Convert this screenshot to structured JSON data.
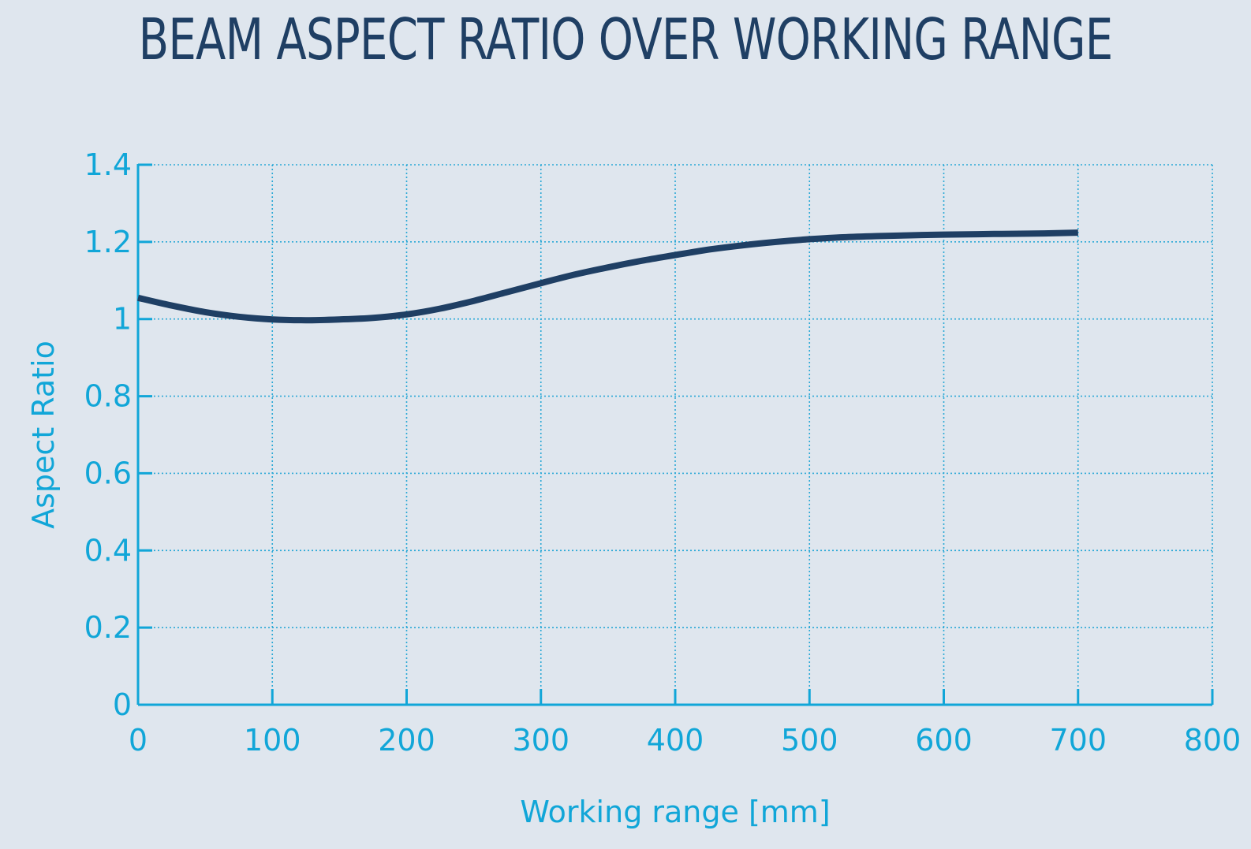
{
  "colors": {
    "background": "#dfe6ee",
    "title": "#1f3f64",
    "axis": "#11a6d8",
    "grid": "#2aa8d6",
    "series": "#1f3f64"
  },
  "chart_data": {
    "type": "line",
    "title": "BEAM ASPECT RATIO OVER WORKING RANGE",
    "xlabel": "Working range [mm]",
    "ylabel": "Aspect Ratio",
    "xlim": [
      0,
      800
    ],
    "ylim": [
      0,
      1.4
    ],
    "x_ticks": [
      0,
      100,
      200,
      300,
      400,
      500,
      600,
      700,
      800
    ],
    "y_ticks": [
      0,
      0.2,
      0.4,
      0.6,
      0.8,
      1,
      1.2,
      1.4
    ],
    "x_tick_labels": [
      "0",
      "100",
      "200",
      "300",
      "400",
      "500",
      "600",
      "700",
      "800"
    ],
    "y_tick_labels": [
      "0",
      "0.2",
      "0.4",
      "0.6",
      "0.8",
      "1",
      "1.2",
      "1.4"
    ],
    "grid": true,
    "legend": "none",
    "series": [
      {
        "x": [
          0,
          25,
          50,
          75,
          100,
          125,
          150,
          175,
          200,
          225,
          250,
          275,
          300,
          325,
          350,
          375,
          400,
          425,
          450,
          475,
          500,
          525,
          550,
          575,
          600,
          625,
          650,
          675,
          700
        ],
        "y": [
          1.055,
          1.035,
          1.018,
          1.006,
          0.999,
          0.997,
          0.999,
          1.003,
          1.012,
          1.027,
          1.047,
          1.07,
          1.093,
          1.115,
          1.134,
          1.151,
          1.166,
          1.18,
          1.191,
          1.2,
          1.207,
          1.212,
          1.215,
          1.217,
          1.219,
          1.22,
          1.221,
          1.222,
          1.224
        ]
      }
    ]
  }
}
